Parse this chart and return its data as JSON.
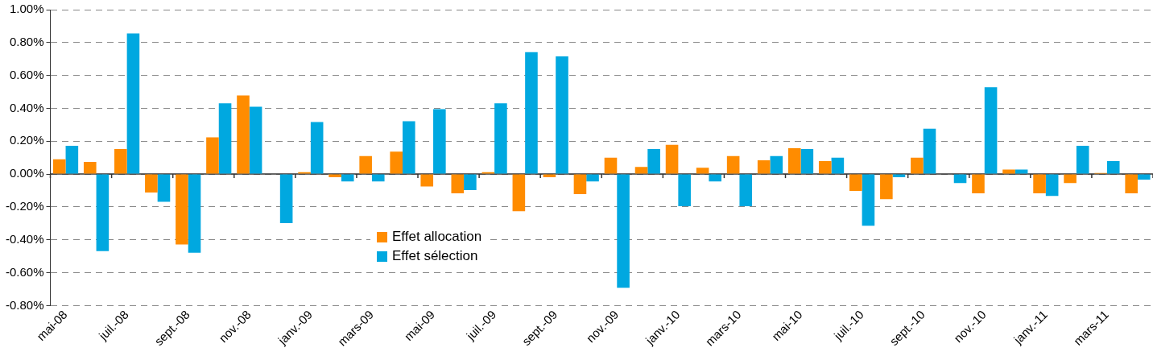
{
  "chart_data": {
    "type": "bar",
    "categories": [
      "mai-08",
      null,
      "juil.-08",
      null,
      "sept.-08",
      null,
      "nov.-08",
      null,
      "janv.-09",
      null,
      "mars-09",
      null,
      "mai-09",
      null,
      "juil.-09",
      null,
      "sept.-09",
      null,
      "nov.-09",
      null,
      "janv.-10",
      null,
      "mars-10",
      null,
      "mai-10",
      null,
      "juil.-10",
      null,
      "sept.-10",
      null,
      "nov.-10",
      null,
      "janv.-11",
      null,
      "mars-11",
      null
    ],
    "series": [
      {
        "name": "Effet allocation",
        "color": "#ff8c00",
        "values": [
          0.09,
          0.074,
          0.152,
          -0.112,
          -0.428,
          0.224,
          0.478,
          0,
          0.012,
          -0.019,
          0.11,
          0.136,
          -0.076,
          -0.117,
          0.012,
          -0.226,
          -0.019,
          -0.122,
          0.1,
          0.043,
          0.178,
          0.038,
          0.11,
          0.084,
          0.157,
          0.079,
          -0.102,
          -0.153,
          0.1,
          0,
          -0.117,
          0.028,
          -0.117,
          -0.055,
          0.007,
          -0.117
        ]
      },
      {
        "name": "Effet sélection",
        "color": "#00a8e0",
        "values": [
          0.172,
          -0.469,
          0.855,
          -0.169,
          -0.479,
          0.431,
          0.41,
          -0.298,
          0.317,
          -0.045,
          -0.045,
          0.322,
          0.395,
          -0.097,
          0.431,
          0.741,
          0.716,
          -0.045,
          -0.691,
          0.152,
          -0.195,
          -0.045,
          -0.195,
          0.11,
          0.152,
          0.1,
          -0.314,
          -0.019,
          0.276,
          -0.055,
          0.529,
          0.028,
          -0.133,
          0.172,
          0.079,
          -0.034
        ]
      }
    ],
    "ylim": [
      -0.8,
      1
    ],
    "yticks": [
      {
        "value": -0.8,
        "label": "-0.80%"
      },
      {
        "value": -0.6,
        "label": "-0.60%"
      },
      {
        "value": -0.4,
        "label": "-0.40%"
      },
      {
        "value": -0.2,
        "label": "-0.20%"
      },
      {
        "value": 0,
        "label": "0.00%"
      },
      {
        "value": 0.2,
        "label": "0.20%"
      },
      {
        "value": 0.4,
        "label": "0.40%"
      },
      {
        "value": 0.6,
        "label": "0.60%"
      },
      {
        "value": 0.8,
        "label": "0.80%"
      },
      {
        "value": 1,
        "label": "1.00%"
      }
    ],
    "grid": "y",
    "legend": "bottom left"
  }
}
